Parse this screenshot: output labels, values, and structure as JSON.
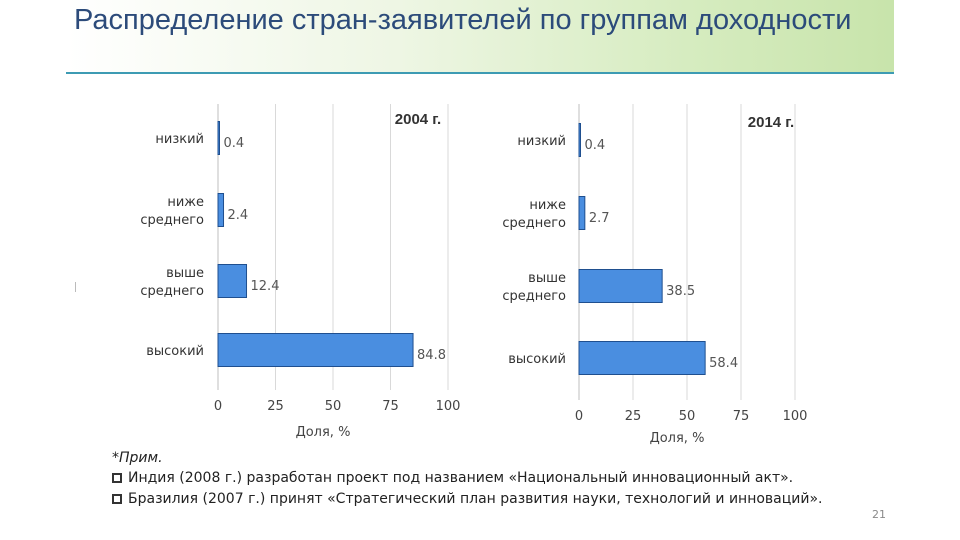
{
  "title": "Распределение стран-заявителей по группам доходности",
  "colors": {
    "bar": "#4a8ee0",
    "bar_edge": "#1f4f8f",
    "grid": "#d9d9d9",
    "title": "#2c4b7a"
  },
  "chart_data": [
    {
      "type": "bar",
      "orientation": "horizontal",
      "title": "2004 г.",
      "categories": [
        "низкий",
        "ниже среднего",
        "выше среднего",
        "высокий"
      ],
      "category_labels": [
        [
          "низкий"
        ],
        [
          "ниже",
          "среднего"
        ],
        [
          "выше",
          "среднего"
        ],
        [
          "высокий"
        ]
      ],
      "values": [
        0.4,
        2.4,
        12.4,
        84.8
      ],
      "value_labels": [
        "0.4",
        "2.4",
        "12.4",
        "84.8"
      ],
      "xlabel": "Доля, %",
      "ylabel": "",
      "xlim": [
        0,
        100
      ],
      "xticks": [
        "0",
        "25",
        "50",
        "75",
        "100"
      ],
      "grid": true
    },
    {
      "type": "bar",
      "orientation": "horizontal",
      "title": "2014 г.",
      "categories": [
        "низкий",
        "ниже среднего",
        "выше среднего",
        "высокий"
      ],
      "category_labels": [
        [
          "низкий"
        ],
        [
          "ниже",
          "среднего"
        ],
        [
          "выше",
          "среднего"
        ],
        [
          "высокий"
        ]
      ],
      "values": [
        0.4,
        2.7,
        38.5,
        58.4
      ],
      "value_labels": [
        "0.4",
        "2.7",
        "38.5",
        "58.4"
      ],
      "xlabel": "Доля, %",
      "ylabel": "",
      "xlim": [
        0,
        100
      ],
      "xticks": [
        "0",
        "25",
        "50",
        "75",
        "100"
      ],
      "grid": true
    }
  ],
  "note": {
    "caption": "*Прим.",
    "items": [
      "Индия (2008 г.) разработан проект под названием «Национальный инновационный акт».",
      "Бразилия (2007 г.) принят «Стратегический план развития науки, технологий и инноваций»."
    ]
  },
  "slide_number": "21"
}
